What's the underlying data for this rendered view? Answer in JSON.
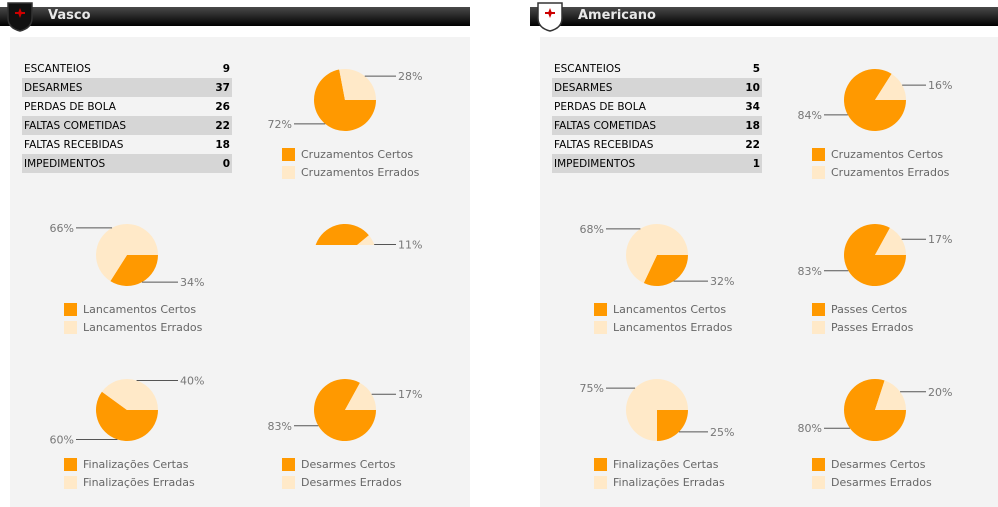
{
  "colors": {
    "certos": "#ff9900",
    "errados": "#ffe9c8"
  },
  "teams": [
    {
      "name": "Vasco",
      "logo": "vasco-crest",
      "stats": [
        {
          "label": "ESCANTEIOS",
          "value": "9"
        },
        {
          "label": "DESARMES",
          "value": "37"
        },
        {
          "label": "PERDAS DE BOLA",
          "value": "26"
        },
        {
          "label": "FALTAS COMETIDAS",
          "value": "22"
        },
        {
          "label": "FALTAS RECEBIDAS",
          "value": "18"
        },
        {
          "label": "IMPEDIMENTOS",
          "value": "0"
        }
      ],
      "pies": [
        {
          "slot": "r1c2",
          "certos": 72,
          "errados": 28,
          "certos_label": "72%",
          "errados_label": "28%",
          "legend": [
            "Cruzamentos Certos",
            "Cruzamentos Errados"
          ]
        },
        {
          "slot": "r2c1",
          "certos": 34,
          "errados": 66,
          "certos_label": "34%",
          "errados_label": "66%",
          "legend": [
            "Lancamentos Certos",
            "Lancamentos Errados"
          ]
        },
        {
          "slot": "r2c2",
          "certos": 89,
          "errados": 11,
          "certos_label": null,
          "errados_label": "11%",
          "legend": null,
          "cropped": true
        },
        {
          "slot": "r3c1",
          "certos": 60,
          "errados": 40,
          "certos_label": "60%",
          "errados_label": "40%",
          "legend": [
            "Finalizações Certas",
            "Finalizações Erradas"
          ]
        },
        {
          "slot": "r3c2",
          "certos": 83,
          "errados": 17,
          "certos_label": "83%",
          "errados_label": "17%",
          "legend": [
            "Desarmes Certos",
            "Desarmes Errados"
          ]
        }
      ]
    },
    {
      "name": "Americano",
      "logo": "americano-crest",
      "stats": [
        {
          "label": "ESCANTEIOS",
          "value": "5"
        },
        {
          "label": "DESARMES",
          "value": "10"
        },
        {
          "label": "PERDAS DE BOLA",
          "value": "34"
        },
        {
          "label": "FALTAS COMETIDAS",
          "value": "18"
        },
        {
          "label": "FALTAS RECEBIDAS",
          "value": "22"
        },
        {
          "label": "IMPEDIMENTOS",
          "value": "1"
        }
      ],
      "pies": [
        {
          "slot": "r1c2",
          "certos": 84,
          "errados": 16,
          "certos_label": "84%",
          "errados_label": "16%",
          "legend": [
            "Cruzamentos Certos",
            "Cruzamentos Errados"
          ]
        },
        {
          "slot": "r2c1",
          "certos": 32,
          "errados": 68,
          "certos_label": "32%",
          "errados_label": "68%",
          "legend": [
            "Lancamentos Certos",
            "Lancamentos Errados"
          ]
        },
        {
          "slot": "r2c2",
          "certos": 83,
          "errados": 17,
          "certos_label": "83%",
          "errados_label": "17%",
          "legend": [
            "Passes Certos",
            "Passes Errados"
          ]
        },
        {
          "slot": "r3c1",
          "certos": 25,
          "errados": 75,
          "certos_label": "25%",
          "errados_label": "75%",
          "legend": [
            "Finalizações Certas",
            "Finalizações Erradas"
          ]
        },
        {
          "slot": "r3c2",
          "certos": 80,
          "errados": 20,
          "certos_label": "80%",
          "errados_label": "20%",
          "legend": [
            "Desarmes Certos",
            "Desarmes Errados"
          ]
        }
      ]
    }
  ]
}
